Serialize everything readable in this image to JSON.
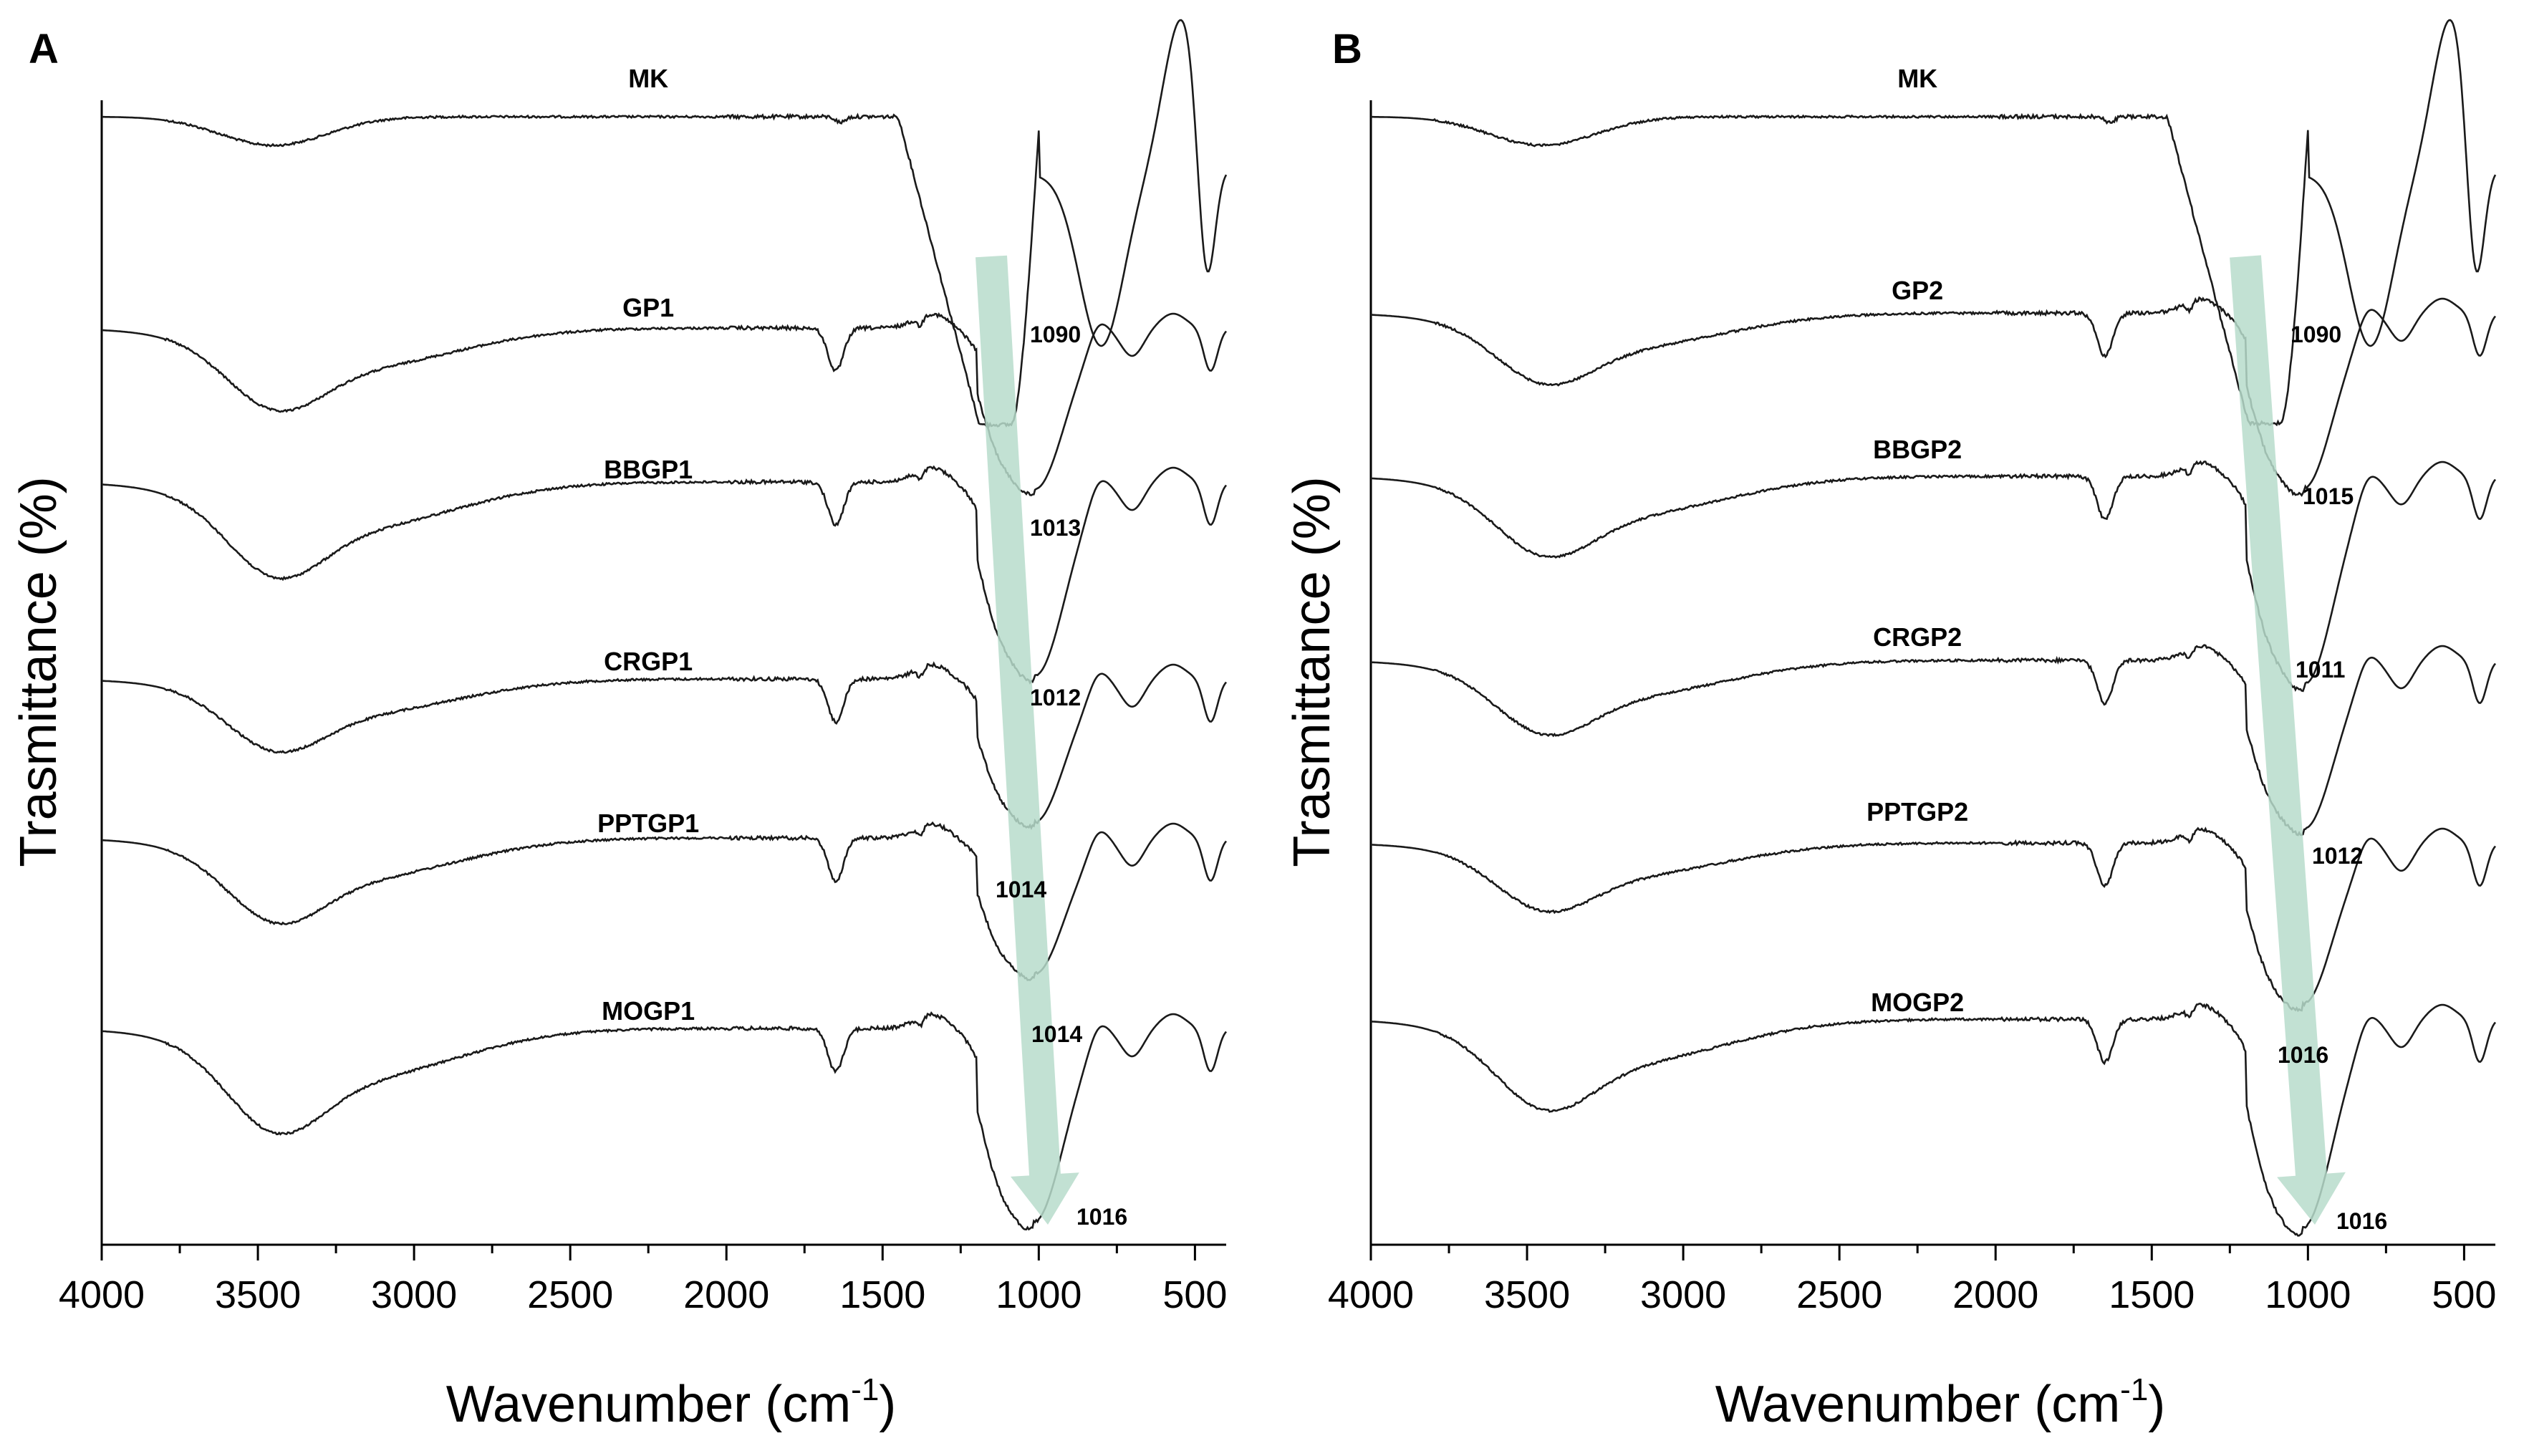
{
  "chart_data": [
    {
      "panel": "A",
      "type": "line",
      "xlabel": "Wavenumber (cm",
      "xlabel_sup": "-1",
      "xlabel_suffix": ")",
      "ylabel": "Trasmittance (%)",
      "xlim": [
        4000,
        400
      ],
      "xticks": [
        4000,
        3500,
        3000,
        2500,
        2000,
        1500,
        1000,
        500
      ],
      "xtick_labels": [
        "4000",
        "3500",
        "3000",
        "2500",
        "2000",
        "1500",
        "1000",
        "500"
      ],
      "y_units": "arbitrary (stacked, offset spectra)",
      "series": [
        {
          "name": "MK",
          "peak_label": "1090",
          "peak_wavenumber": 1090
        },
        {
          "name": "GP1",
          "peak_label": "1013",
          "peak_wavenumber": 1013
        },
        {
          "name": "BBGP1",
          "peak_label": "1012",
          "peak_wavenumber": 1012
        },
        {
          "name": "CRGP1",
          "peak_label": "1014",
          "peak_wavenumber": 1014
        },
        {
          "name": "PPTGP1",
          "peak_label": "1014",
          "peak_wavenumber": 1014
        },
        {
          "name": "MOGP1",
          "peak_label": "1016",
          "peak_wavenumber": 1016
        }
      ],
      "annotations": [
        "1090",
        "1013",
        "1012",
        "1014",
        "1014",
        "1016"
      ],
      "arrow": {
        "from_wavenumber": 1090,
        "to_wavenumber": 1016,
        "color": "#b7dccb"
      }
    },
    {
      "panel": "B",
      "type": "line",
      "xlabel": "Wavenumber (cm",
      "xlabel_sup": "-1",
      "xlabel_suffix": ")",
      "ylabel": "Trasmittance (%)",
      "xlim": [
        4000,
        400
      ],
      "xticks": [
        4000,
        3500,
        3000,
        2500,
        2000,
        1500,
        1000,
        500
      ],
      "xtick_labels": [
        "4000",
        "3500",
        "3000",
        "2500",
        "2000",
        "1500",
        "1000",
        "500"
      ],
      "y_units": "arbitrary (stacked, offset spectra)",
      "series": [
        {
          "name": "MK",
          "peak_label": "1090",
          "peak_wavenumber": 1090
        },
        {
          "name": "GP2",
          "peak_label": "1015",
          "peak_wavenumber": 1015
        },
        {
          "name": "BBGP2",
          "peak_label": "1011",
          "peak_wavenumber": 1011
        },
        {
          "name": "CRGP2",
          "peak_label": "1012",
          "peak_wavenumber": 1012
        },
        {
          "name": "PPTGP2",
          "peak_label": "1016",
          "peak_wavenumber": 1016
        },
        {
          "name": "MOGP2",
          "peak_label": "1016",
          "peak_wavenumber": 1016
        }
      ],
      "annotations": [
        "1090",
        "1015",
        "1011",
        "1012",
        "1016",
        "1016"
      ],
      "arrow": {
        "from_wavenumber": 1090,
        "to_wavenumber": 1016,
        "color": "#b7dccb"
      }
    }
  ],
  "colors": {
    "line": "#1a1a1a",
    "arrow": "#b7dccb",
    "axis": "#000000"
  }
}
